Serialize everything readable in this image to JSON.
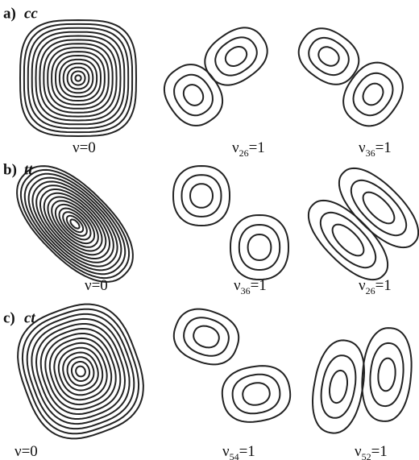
{
  "rows": [
    {
      "letter": "a)",
      "name": "cc",
      "captions": [
        {
          "base": "ν=0"
        },
        {
          "base": "ν",
          "sub": "26",
          "rest": "=1"
        },
        {
          "base": "ν",
          "sub": "36",
          "rest": "=1"
        }
      ]
    },
    {
      "letter": "b)",
      "name": "tt",
      "captions": [
        {
          "base": "ν=0"
        },
        {
          "base": "ν",
          "sub": "36",
          "rest": "=1"
        },
        {
          "base": "ν",
          "sub": "26",
          "rest": "=1"
        }
      ]
    },
    {
      "letter": "c)",
      "name": "ct",
      "captions": [
        {
          "base": "ν=0"
        },
        {
          "base": "ν",
          "sub": "54",
          "rest": "=1"
        },
        {
          "base": "ν",
          "sub": "52",
          "rest": "=1"
        }
      ]
    }
  ]
}
